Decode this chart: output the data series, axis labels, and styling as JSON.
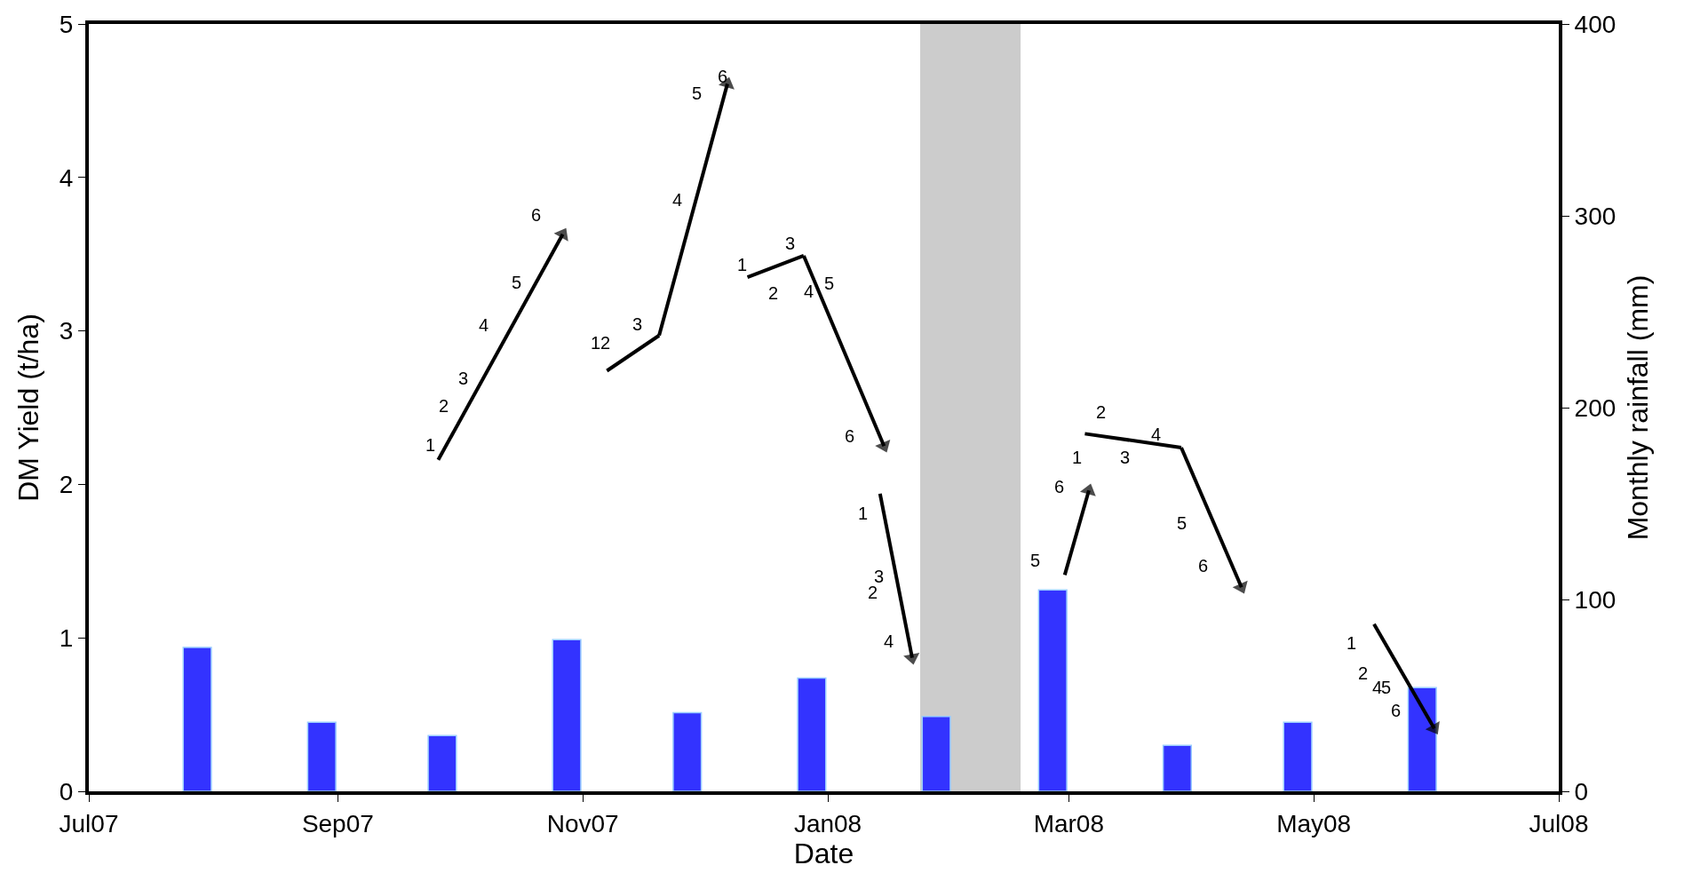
{
  "chart_data": {
    "type": "line",
    "xlabel": "Date",
    "ylabel": "DM Yield (t/ha)",
    "y2label": "Monthly rainfall (mm)",
    "xlim": [
      "2007-07-01",
      "2008-07-01"
    ],
    "xticks": [
      {
        "value": "2007-07-01",
        "label": "Jul07"
      },
      {
        "value": "2007-09-01",
        "label": "Sep07"
      },
      {
        "value": "2007-11-01",
        "label": "Nov07"
      },
      {
        "value": "2008-01-01",
        "label": "Jan08"
      },
      {
        "value": "2008-03-01",
        "label": "Mar08"
      },
      {
        "value": "2008-05-01",
        "label": "May08"
      },
      {
        "value": "2008-07-01",
        "label": "Jul08"
      }
    ],
    "ylim": [
      0,
      5
    ],
    "yticks": [
      0,
      1,
      2,
      3,
      4,
      5
    ],
    "y2lim": [
      0,
      400
    ],
    "y2ticks": [
      0,
      100,
      200,
      300,
      400
    ],
    "grid": false,
    "marker": "triangle",
    "line_style": "solid",
    "series": [
      {
        "type": "bar",
        "axis": "y2",
        "color": "#3333ff",
        "x": [
          "2007-07-28",
          "2007-08-28",
          "2007-09-27",
          "2007-10-28",
          "2007-11-27",
          "2007-12-28",
          "2008-01-28",
          "2008-02-26",
          "2008-03-28",
          "2008-04-27",
          "2008-05-28"
        ],
        "values": [
          75,
          36,
          29,
          79,
          41,
          59,
          39,
          105,
          24,
          36,
          54
        ]
      },
      {
        "color": "#000000",
        "x": [
          "2007-09-26",
          "2007-10-27"
        ],
        "values": [
          2.16,
          3.63
        ]
      },
      {
        "color": "#000000",
        "marker": "none",
        "x": [
          "2007-11-07",
          "2007-11-20"
        ],
        "values": [
          2.74,
          2.97
        ]
      },
      {
        "color": "#000000",
        "x": [
          "2007-11-20",
          "2007-12-07"
        ],
        "values": [
          2.97,
          4.61
        ]
      },
      {
        "color": "#000000",
        "marker": "none",
        "x": [
          "2007-12-12",
          "2007-12-26"
        ],
        "values": [
          3.35,
          3.49
        ]
      },
      {
        "color": "#000000",
        "x": [
          "2007-12-26",
          "2008-01-15"
        ],
        "values": [
          3.49,
          2.25
        ]
      },
      {
        "color": "#000000",
        "x": [
          "2008-01-14",
          "2008-01-22"
        ],
        "values": [
          1.94,
          0.87
        ]
      },
      {
        "color": "#000000",
        "x": [
          "2008-02-29",
          "2008-03-06"
        ],
        "values": [
          1.41,
          1.96
        ]
      },
      {
        "color": "#000000",
        "marker": "none",
        "x": [
          "2008-03-05",
          "2008-03-29"
        ],
        "values": [
          2.33,
          2.24
        ]
      },
      {
        "color": "#000000",
        "x": [
          "2008-03-29",
          "2008-04-13"
        ],
        "values": [
          2.24,
          1.33
        ]
      },
      {
        "color": "#000000",
        "x": [
          "2008-05-16",
          "2008-05-31"
        ],
        "values": [
          1.09,
          0.41
        ]
      }
    ],
    "bands": [
      {
        "axis": "x",
        "from": "2008-01-24",
        "to": "2008-02-18",
        "color": "#cccccc"
      }
    ],
    "annotations": [
      "1",
      "2",
      "3",
      "4",
      "5",
      "6",
      "12",
      "3",
      "4",
      "5",
      "6",
      "1",
      "3",
      "2",
      "4",
      "5",
      "6",
      "1",
      "3",
      "2",
      "4",
      "5",
      "6",
      "1",
      "2",
      "3",
      "4",
      "5",
      "6",
      "1",
      "2",
      "4",
      "5",
      "6"
    ]
  }
}
